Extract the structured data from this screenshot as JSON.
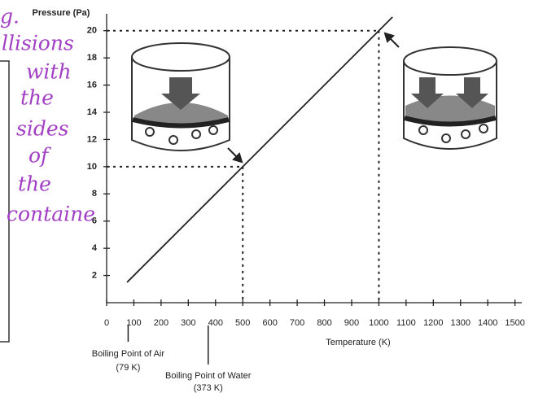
{
  "chart_data": {
    "type": "line",
    "y_label": "Pressure (Pa)",
    "x_label": "Temperature (K)",
    "x": [
      75,
      500,
      1000,
      1050
    ],
    "values": [
      1.5,
      10,
      20,
      21
    ],
    "color": "#222222",
    "xlim": [
      0,
      1525
    ],
    "ylim": [
      0,
      21
    ],
    "xticks": [
      0,
      100,
      200,
      300,
      400,
      500,
      600,
      700,
      800,
      900,
      1000,
      1100,
      1200,
      1300,
      1400,
      1500
    ],
    "yticks": [
      2,
      4,
      6,
      8,
      10,
      12,
      14,
      16,
      18,
      20
    ],
    "guides": [
      {
        "x": 500,
        "y": 10
      },
      {
        "x": 1000,
        "y": 20
      }
    ],
    "annotations": [
      {
        "text": "Boiling Point of Air",
        "subtext": "(79 K)",
        "x": 79
      },
      {
        "text": "Boiling Point of Water",
        "subtext": "(373 K)",
        "x": 373
      }
    ]
  },
  "handwritten_notes": [
    "g.",
    "llisions",
    "with",
    "the",
    "sides",
    "of",
    "the",
    "containe"
  ]
}
